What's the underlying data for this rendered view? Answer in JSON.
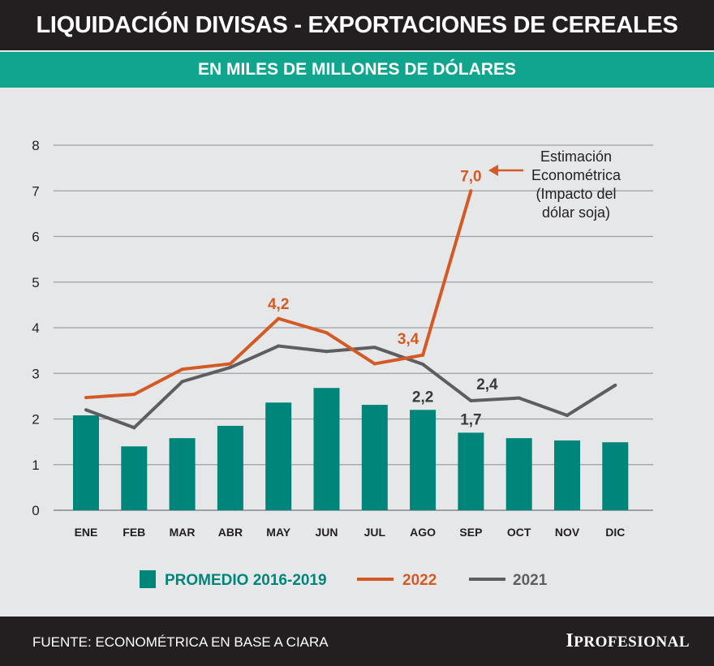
{
  "title": "LIQUIDACIÓN DIVISAS - EXPORTACIONES DE CEREALES",
  "subtitle": "EN MILES DE MILLONES  DE DÓLARES",
  "footer": {
    "source": "FUENTE: ECONOMÉTRICA EN BASE A CIARA",
    "logo": "IPROFESIONAL"
  },
  "chart_data": {
    "type": "bar+line",
    "title": "LIQUIDACIÓN DIVISAS - EXPORTACIONES DE CEREALES",
    "subtitle": "EN MILES DE MILLONES  DE DÓLARES",
    "categories": [
      "ENE",
      "FEB",
      "MAR",
      "ABR",
      "MAY",
      "JUN",
      "JUL",
      "AGO",
      "SEP",
      "OCT",
      "NOV",
      "DIC"
    ],
    "ylim": [
      0,
      8
    ],
    "yticks": [
      "0",
      "1",
      "2",
      "3",
      "4",
      "5",
      "6",
      "7",
      "8"
    ],
    "grid": true,
    "legend_position": "bottom",
    "series": [
      {
        "name": "PROMEDIO 2016-2019",
        "type": "bar",
        "color": "#00857a",
        "values": [
          2.08,
          1.4,
          1.58,
          1.85,
          2.36,
          2.68,
          2.31,
          2.2,
          1.7,
          1.58,
          1.53,
          1.49
        ]
      },
      {
        "name": "2022",
        "type": "line",
        "color": "#d35a24",
        "values": [
          2.47,
          2.54,
          3.09,
          3.21,
          4.2,
          3.89,
          3.21,
          3.4,
          7.0,
          null,
          null,
          null
        ]
      },
      {
        "name": "2021",
        "type": "line",
        "color": "#5e5e60",
        "values": [
          2.2,
          1.81,
          2.82,
          3.13,
          3.6,
          3.48,
          3.57,
          3.2,
          2.4,
          2.46,
          2.08,
          2.74
        ]
      }
    ],
    "data_labels": [
      {
        "text": "4,2",
        "series": "2022",
        "category": "MAY",
        "color": "#d35a24"
      },
      {
        "text": "3,4",
        "series": "2022",
        "category": "AGO",
        "color": "#d35a24"
      },
      {
        "text": "7,0",
        "series": "2022",
        "category": "SEP",
        "color": "#d35a24"
      },
      {
        "text": "2,2",
        "series": "PROMEDIO 2016-2019",
        "category": "AGO",
        "color": "#3a3a3c"
      },
      {
        "text": "1,7",
        "series": "PROMEDIO 2016-2019",
        "category": "SEP",
        "color": "#3a3a3c"
      },
      {
        "text": "2,4",
        "series": "2021",
        "category": "SEP",
        "color": "#3a3a3c"
      }
    ],
    "annotation": [
      "Estimación",
      "Econométrica",
      "(Impacto del",
      "dólar soja)"
    ]
  }
}
